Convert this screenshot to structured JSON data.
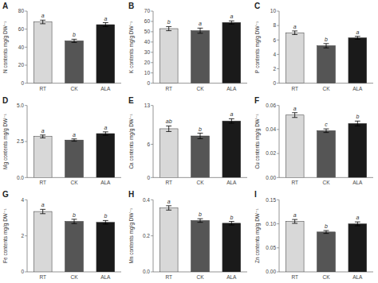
{
  "chart_data": [
    {
      "type": "bar",
      "title": "A",
      "ylabel": "N contents mg/g DW⁻¹",
      "categories": [
        "RT",
        "CK",
        "ALA"
      ],
      "values": [
        68,
        47,
        65
      ],
      "errors": [
        2.0,
        1.8,
        2.2
      ],
      "annotations": [
        "a",
        "b",
        "a"
      ],
      "colors": [
        "#d8d8d8",
        "#555555",
        "#1a1a1a"
      ],
      "ylim": [
        0,
        80
      ],
      "yticks": [
        0,
        20,
        40,
        60,
        80
      ]
    },
    {
      "type": "bar",
      "title": "B",
      "ylabel": "K contents mg/g DW⁻¹",
      "categories": [
        "RT",
        "CK",
        "ALA"
      ],
      "values": [
        53,
        51,
        59
      ],
      "errors": [
        2.0,
        2.5,
        1.5
      ],
      "annotations": [
        "b",
        "a",
        "a"
      ],
      "colors": [
        "#d8d8d8",
        "#555555",
        "#1a1a1a"
      ],
      "ylim": [
        0,
        70
      ],
      "yticks": [
        0,
        10,
        20,
        30,
        40,
        50,
        60,
        70
      ]
    },
    {
      "type": "bar",
      "title": "C",
      "ylabel": "P contents mg/g DW⁻¹",
      "categories": [
        "RT",
        "CK",
        "ALA"
      ],
      "values": [
        7.0,
        5.2,
        6.3
      ],
      "errors": [
        0.25,
        0.3,
        0.2
      ],
      "annotations": [
        "a",
        "b",
        "a"
      ],
      "colors": [
        "#d8d8d8",
        "#555555",
        "#1a1a1a"
      ],
      "ylim": [
        0,
        10
      ],
      "yticks": [
        0,
        2,
        4,
        6,
        8,
        10
      ]
    },
    {
      "type": "bar",
      "title": "D",
      "ylabel": "Mg contents mg/g DW⁻¹",
      "categories": [
        "RT",
        "CK",
        "ALA"
      ],
      "values": [
        2.85,
        2.6,
        3.05
      ],
      "errors": [
        0.1,
        0.08,
        0.12
      ],
      "annotations": [
        "a",
        "a",
        "a"
      ],
      "colors": [
        "#d8d8d8",
        "#555555",
        "#1a1a1a"
      ],
      "ylim": [
        0.0,
        5.0
      ],
      "yticks": [
        {
          "value": 0,
          "label": "0.0"
        },
        2.5,
        {
          "value": 5,
          "label": "5.0"
        }
      ]
    },
    {
      "type": "bar",
      "title": "E",
      "ylabel": "Ca contents mg/g DW⁻¹",
      "categories": [
        "RT",
        "CK",
        "ALA"
      ],
      "values": [
        8.8,
        7.5,
        10.2
      ],
      "errors": [
        0.5,
        0.5,
        0.4
      ],
      "annotations": [
        "ab",
        "b",
        "a"
      ],
      "colors": [
        "#d8d8d8",
        "#555555",
        "#1a1a1a"
      ],
      "ylim": [
        0,
        13
      ],
      "yticks": [
        0,
        6,
        13
      ]
    },
    {
      "type": "bar",
      "title": "F",
      "ylabel": "Cu contents mg/g DW⁻¹",
      "categories": [
        "RT",
        "CK",
        "ALA"
      ],
      "values": [
        0.052,
        0.039,
        0.045
      ],
      "errors": [
        0.002,
        0.0015,
        0.002
      ],
      "annotations": [
        "a",
        "c",
        "b"
      ],
      "colors": [
        "#d8d8d8",
        "#555555",
        "#1a1a1a"
      ],
      "ylim": [
        0.0,
        0.06
      ],
      "yticks": [
        {
          "value": 0,
          "label": "0.00"
        },
        0.02,
        0.04,
        0.06
      ]
    },
    {
      "type": "bar",
      "title": "G",
      "ylabel": "Fe contents mg/g DW⁻¹",
      "categories": [
        "RT",
        "CK",
        "ALA"
      ],
      "values": [
        3.35,
        2.8,
        2.75
      ],
      "errors": [
        0.12,
        0.12,
        0.1
      ],
      "annotations": [
        "a",
        "b",
        "b"
      ],
      "colors": [
        "#d8d8d8",
        "#555555",
        "#1a1a1a"
      ],
      "ylim": [
        0,
        4
      ],
      "yticks": [
        0,
        2,
        4
      ]
    },
    {
      "type": "bar",
      "title": "H",
      "ylabel": "Mn contents mg/g DW⁻¹",
      "categories": [
        "RT",
        "CK",
        "ALA"
      ],
      "values": [
        0.355,
        0.285,
        0.27
      ],
      "errors": [
        0.012,
        0.01,
        0.01
      ],
      "annotations": [
        "a",
        "b",
        "b"
      ],
      "colors": [
        "#d8d8d8",
        "#555555",
        "#1a1a1a"
      ],
      "ylim": [
        0.0,
        0.4
      ],
      "yticks": [
        {
          "value": 0,
          "label": "0.0"
        },
        0.2,
        0.4
      ]
    },
    {
      "type": "bar",
      "title": "I",
      "ylabel": "Zn contents mg/g DW⁻¹",
      "categories": [
        "RT",
        "CK",
        "ALA"
      ],
      "values": [
        0.105,
        0.083,
        0.1
      ],
      "errors": [
        0.004,
        0.003,
        0.004
      ],
      "annotations": [
        "a",
        "b",
        "a"
      ],
      "colors": [
        "#d8d8d8",
        "#555555",
        "#1a1a1a"
      ],
      "ylim": [
        0.0,
        0.15
      ],
      "yticks": [
        {
          "value": 0,
          "label": "0.00"
        },
        0.05,
        {
          "value": 0.1,
          "label": "0.10"
        },
        0.15
      ]
    }
  ]
}
